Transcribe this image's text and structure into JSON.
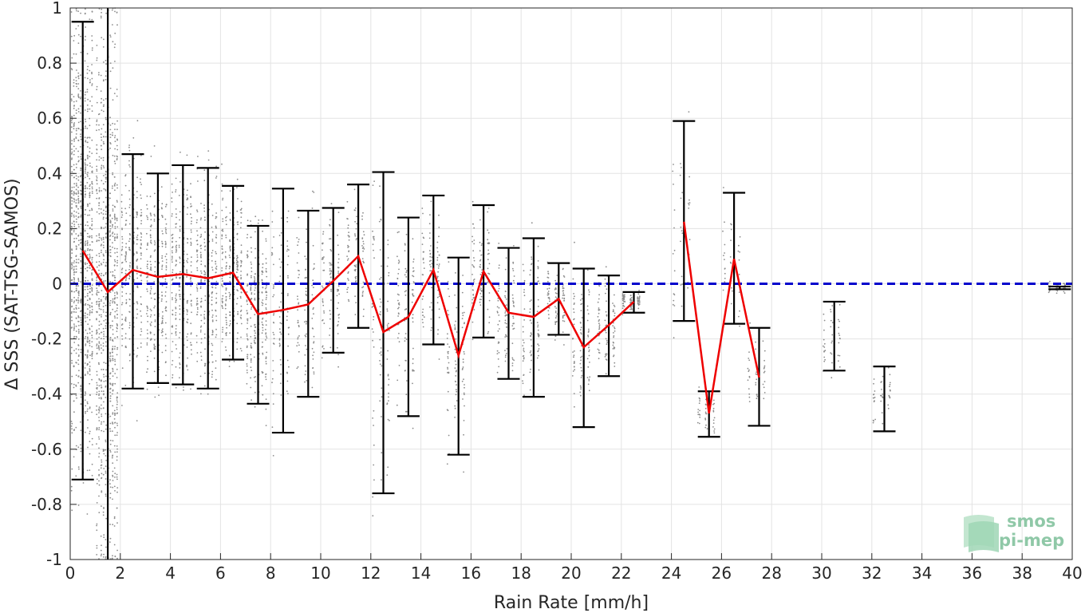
{
  "chart_data": {
    "type": "scatter",
    "xlabel": "Rain Rate [mm/h]",
    "ylabel": "Δ SSS (SAT-TSG-SAMOS)",
    "xlim": [
      0,
      40
    ],
    "ylim": [
      -1,
      1
    ],
    "x_ticks": [
      "0",
      "2",
      "4",
      "6",
      "8",
      "10",
      "12",
      "14",
      "16",
      "18",
      "20",
      "22",
      "24",
      "26",
      "28",
      "30",
      "32",
      "34",
      "36",
      "38",
      "40"
    ],
    "y_ticks": [
      "-1",
      "-0.8",
      "-0.6",
      "-0.4",
      "-0.2",
      "0",
      "0.2",
      "0.4",
      "0.6",
      "0.8",
      "1"
    ],
    "grid": true,
    "reference_line": {
      "y": 0,
      "color": "#0000cc",
      "style": "dashed"
    },
    "bins": [
      {
        "x": 0.5,
        "mean": 0.12,
        "lower": -0.71,
        "upper": 0.95
      },
      {
        "x": 1.5,
        "mean": -0.03,
        "lower": -1.0,
        "upper": 1.0
      },
      {
        "x": 2.5,
        "mean": 0.05,
        "lower": -0.38,
        "upper": 0.47
      },
      {
        "x": 3.5,
        "mean": 0.025,
        "lower": -0.36,
        "upper": 0.4
      },
      {
        "x": 4.5,
        "mean": 0.035,
        "lower": -0.365,
        "upper": 0.43
      },
      {
        "x": 5.5,
        "mean": 0.02,
        "lower": -0.38,
        "upper": 0.42
      },
      {
        "x": 6.5,
        "mean": 0.04,
        "lower": -0.275,
        "upper": 0.355
      },
      {
        "x": 7.5,
        "mean": -0.11,
        "lower": -0.435,
        "upper": 0.21
      },
      {
        "x": 8.5,
        "mean": -0.095,
        "lower": -0.54,
        "upper": 0.345
      },
      {
        "x": 9.5,
        "mean": -0.075,
        "lower": -0.41,
        "upper": 0.265
      },
      {
        "x": 10.5,
        "mean": 0.01,
        "lower": -0.25,
        "upper": 0.275
      },
      {
        "x": 11.5,
        "mean": 0.1,
        "lower": -0.16,
        "upper": 0.36
      },
      {
        "x": 12.5,
        "mean": -0.175,
        "lower": -0.76,
        "upper": 0.405
      },
      {
        "x": 13.5,
        "mean": -0.12,
        "lower": -0.48,
        "upper": 0.24
      },
      {
        "x": 14.5,
        "mean": 0.05,
        "lower": -0.22,
        "upper": 0.32
      },
      {
        "x": 15.5,
        "mean": -0.26,
        "lower": -0.62,
        "upper": 0.095
      },
      {
        "x": 16.5,
        "mean": 0.045,
        "lower": -0.195,
        "upper": 0.285
      },
      {
        "x": 17.5,
        "mean": -0.105,
        "lower": -0.345,
        "upper": 0.13
      },
      {
        "x": 18.5,
        "mean": -0.12,
        "lower": -0.41,
        "upper": 0.165
      },
      {
        "x": 19.5,
        "mean": -0.055,
        "lower": -0.185,
        "upper": 0.075
      },
      {
        "x": 20.5,
        "mean": -0.23,
        "lower": -0.52,
        "upper": 0.055
      },
      {
        "x": 21.5,
        "mean": -0.15,
        "lower": -0.335,
        "upper": 0.03
      },
      {
        "x": 22.5,
        "mean": -0.065,
        "lower": -0.105,
        "upper": -0.03
      },
      {
        "x": 24.5,
        "mean": 0.225,
        "lower": -0.135,
        "upper": 0.59
      },
      {
        "x": 25.5,
        "mean": -0.47,
        "lower": -0.555,
        "upper": -0.39
      },
      {
        "x": 26.5,
        "mean": 0.09,
        "lower": -0.145,
        "upper": 0.33
      },
      {
        "x": 27.5,
        "mean": -0.34,
        "lower": -0.515,
        "upper": -0.16
      },
      {
        "x": 30.5,
        "mean": null,
        "lower": -0.315,
        "upper": -0.065
      },
      {
        "x": 32.5,
        "mean": null,
        "lower": -0.535,
        "upper": -0.3
      },
      {
        "x": 39.5,
        "mean": null,
        "lower": -0.02,
        "upper": -0.01
      }
    ],
    "mean_line_color": "#ee0000",
    "errorbar_color": "#000000",
    "points_color": "#8c8c8c"
  },
  "logo": {
    "line1": "smos",
    "line2": "pi-mep"
  }
}
